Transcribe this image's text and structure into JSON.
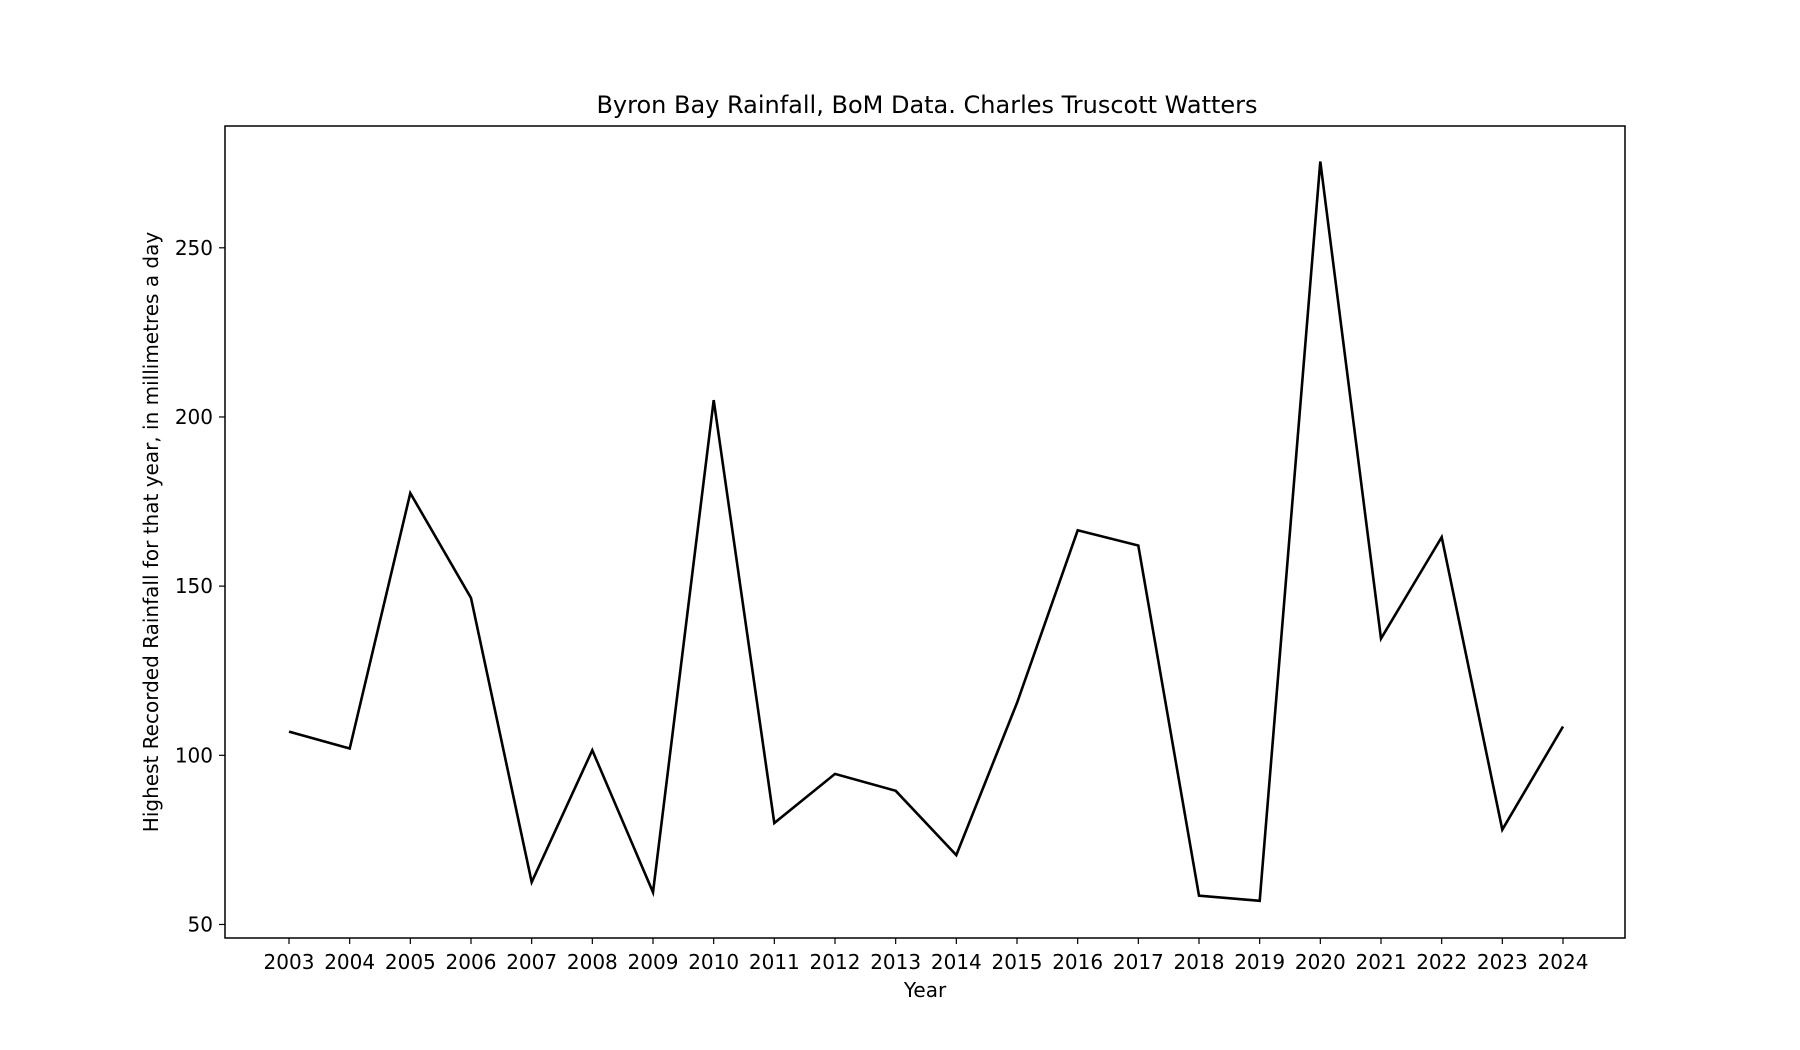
{
  "chart_data": {
    "type": "line",
    "title": "Byron Bay Rainfall, BoM Data. Charles Truscott Watters",
    "xlabel": "Year",
    "ylabel": "Highest Recorded Rainfall for that year, in millimetres a day",
    "categories": [
      "2003",
      "2004",
      "2005",
      "2006",
      "2007",
      "2008",
      "2009",
      "2010",
      "2011",
      "2012",
      "2013",
      "2014",
      "2015",
      "2016",
      "2017",
      "2018",
      "2019",
      "2020",
      "2021",
      "2022",
      "2023",
      "2024"
    ],
    "series": [
      {
        "values": [
          107,
          102,
          177.5,
          146.5,
          62.5,
          101.5,
          59.5,
          205,
          80,
          94.5,
          89.5,
          70.5,
          115.5,
          166.5,
          162,
          58.5,
          57,
          275.5,
          134.5,
          164.5,
          78,
          108.5
        ],
        "color": "#000000"
      }
    ],
    "yticks": [
      50,
      100,
      150,
      200,
      250
    ],
    "ylim": [
      46,
      286
    ],
    "grid": false,
    "legend": "none"
  }
}
